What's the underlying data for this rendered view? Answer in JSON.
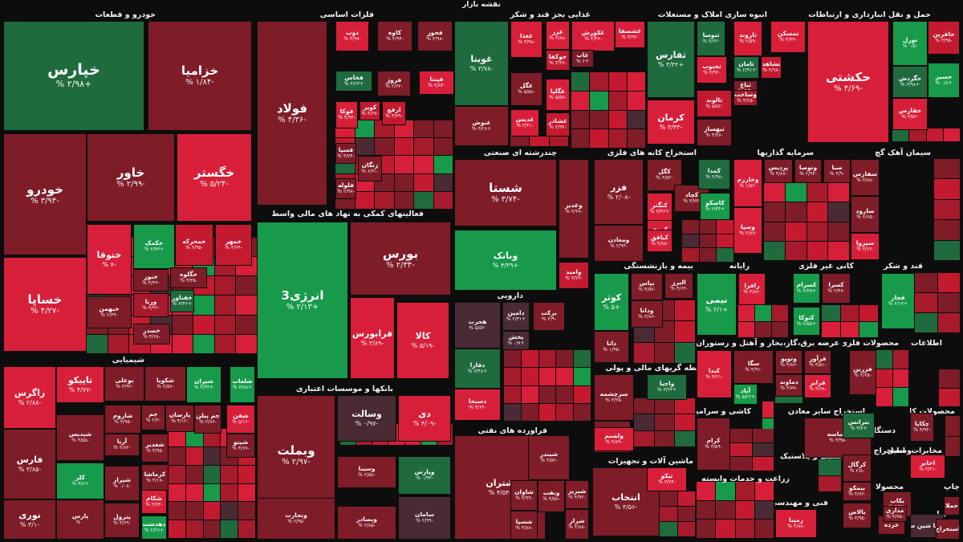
{
  "title": "نقشه بازار",
  "palette": {
    "r4": "#d81f3a",
    "r3": "#c41a30",
    "r2": "#a51b2c",
    "r1": "#7e1c28",
    "g0": "#4a2a33",
    "g1": "#1f6b3d",
    "g2": "#179a4a",
    "g3": "#23b655"
  },
  "sectors": [
    "خودرو و قطعات",
    "فلزات اساسی",
    "غذایی بجز قند و شکر",
    "انبوه سازی املاک و مستغلات",
    "حمل و نقل انبارداری و ارتباطات",
    "چندرشته ای صنعتی",
    "استخراج کانه های فلزی",
    "سرمایه گذاریها",
    "سیمان آهک گچ",
    "فعالیتهای کمکی به نهاد های مالی واسط",
    "شیمیایی",
    "بیمه و بازنشستگی",
    "رایانه",
    "کانی غیر فلزی",
    "قند و شکر",
    "دارویی",
    "بانکها و موسسات اعتباری",
    "واسطه گریهای مالی و پولی",
    "هتل و رستوران",
    "عرضه برق،گاز،بخار و آب",
    "محصولات فلزی",
    "اطلاعات و ارتباطات",
    "فراورده های نفتی",
    "کاشی و سرامیک",
    "استخراج سایر معادن",
    "دستگاههای برقی",
    "محصولات کاغذی",
    "ماشین آلات و تجهیزات",
    "لاستیک و پلاستیک",
    "وسایل",
    "مخابرات",
    "زراعت و خدمات وابسته",
    "فنی و مهندسی",
    "محصولات",
    "چاپ",
    "سایر",
    "استخراج"
  ],
  "tiles": [
    {
      "name": "خپارس",
      "change": "+۲/۹۸ %"
    },
    {
      "name": "خزامیا",
      "change": "-۱/۸۴ %"
    },
    {
      "name": "خاور",
      "change": "-۲/۹۹ %"
    },
    {
      "name": "خگستر",
      "change": "-۵/۲۴ %"
    },
    {
      "name": "خودرو",
      "change": "-۳/۹۴ %"
    },
    {
      "name": "خساپا",
      "change": "-۴/۲۷ %"
    },
    {
      "name": "ختوقا",
      "change": "-۷ %"
    },
    {
      "name": "خکمک",
      "change": "+۲/۹۳ %"
    },
    {
      "name": "خمحرکه",
      "change": "-۳/۹۵ %"
    },
    {
      "name": "خمهر",
      "change": "-۴/۷۹ %"
    },
    {
      "name": "خنور",
      "change": "-۳/۳۳ %"
    },
    {
      "name": "خگلوه",
      "change": "-۳/۳۵ %"
    },
    {
      "name": "خفناور",
      "change": "+۳/۴۶ %"
    },
    {
      "name": "ورنا",
      "change": "-۳/۲۲ %"
    },
    {
      "name": "خبهمن",
      "change": "-۲/۳۹ %"
    },
    {
      "name": "خصدر",
      "change": "-۳/۶۸ %"
    },
    {
      "name": "فولاد",
      "change": "-۴/۳۶ %"
    },
    {
      "name": "ذوب",
      "change": "-۴/۹۷ %"
    },
    {
      "name": "کاوه",
      "change": "-۴/۹۴ %"
    },
    {
      "name": "فخوز",
      "change": "-۴/۹۸ %"
    },
    {
      "name": "فخاس",
      "change": "+۴/۲۳ %"
    },
    {
      "name": "فروژ",
      "change": "-۲/۶۲ %"
    },
    {
      "name": "فپنتا",
      "change": "-۴/۸۴ %"
    },
    {
      "name": "فوکا",
      "change": "-۴/۹۲ %"
    },
    {
      "name": "کویر",
      "change": "-۴/۶۷ %"
    },
    {
      "name": "ارفع",
      "change": "-۴/۷۹ %"
    },
    {
      "name": "فسپا",
      "change": "-۴/۷۴ %"
    },
    {
      "name": "زنگان",
      "change": "-۶/۳۱ %"
    },
    {
      "name": "فلوله",
      "change": "-۲/۹۸ %"
    },
    {
      "name": "غویتا",
      "change": "-۳/۷۸ %"
    },
    {
      "name": "غنوش",
      "change": "+۴/۲۸ %"
    },
    {
      "name": "غغذا",
      "change": "-۴/۹۸ %"
    },
    {
      "name": "غزر",
      "change": "-۳/۸۸ %"
    },
    {
      "name": "غکورش",
      "change": "-۴/۴۷ %"
    },
    {
      "name": "خوکفا",
      "change": "-۴/۴۷ %"
    },
    {
      "name": "غاب",
      "change": "+۶ %"
    },
    {
      "name": "غگل",
      "change": "-۵/۵۸ %"
    },
    {
      "name": "غگلپا",
      "change": "-۵/۵۷ %"
    },
    {
      "name": "غدیس",
      "change": "-۳/۴۱ %"
    },
    {
      "name": "غشاذر",
      "change": "-۳/۹۲ %"
    },
    {
      "name": "غشصفا",
      "change": "-۴/۹۲ %"
    },
    {
      "name": "ثفارس",
      "change": "+۳/۳۲ %"
    },
    {
      "name": "ثنوسا",
      "change": "-۴/۶۲ %"
    },
    {
      "name": "ثاروند",
      "change": "-۲/۵۹ %"
    },
    {
      "name": "ثمسکن",
      "change": "-۳/۹۹ %"
    },
    {
      "name": "ثجنوب",
      "change": "-۳/۹۲ %"
    },
    {
      "name": "ثامان",
      "change": "+۲/۹۱ %"
    },
    {
      "name": "ثشاهد",
      "change": "-۴/۹۸ %"
    },
    {
      "name": "ثباغ",
      "change": "-۴/۹ %"
    },
    {
      "name": "وساخت",
      "change": "-۴/۲۵ %"
    },
    {
      "name": "ثالوند",
      "change": "-۵/۵۲ %"
    },
    {
      "name": "کرمان",
      "change": "-۳/۴۳ %"
    },
    {
      "name": "ثبهساز",
      "change": "-۴/۴۸ %"
    },
    {
      "name": "حکشتی",
      "change": "-۴/۶۹ %"
    },
    {
      "name": "حافرین",
      "change": "-۳/۹۵ %"
    },
    {
      "name": "تورل",
      "change": "-۰/۵ %"
    },
    {
      "name": "حگردش",
      "change": "+۳/۹۸ %"
    },
    {
      "name": "حسیر",
      "change": "+۰/۸ %"
    },
    {
      "name": "حفارس",
      "change": "-۳/۵۲ %"
    },
    {
      "name": "شستا",
      "change": "-۳/۷۴ %"
    },
    {
      "name": "وغدیر",
      "change": "-۴/۳۷ %"
    },
    {
      "name": "وبانک",
      "change": "+۴/۳۹ %"
    },
    {
      "name": "وامید",
      "change": "-۳/۲۳ %"
    },
    {
      "name": "فزر",
      "change": "-۲/۰۸ %"
    },
    {
      "name": "کگل",
      "change": "-۳/۵۲ %"
    },
    {
      "name": "کچاد",
      "change": "-۳/۷۳ %"
    },
    {
      "name": "کنگنر",
      "change": "+۳/۴۶ %"
    },
    {
      "name": "کمدا",
      "change": "-۲/۹۸ %"
    },
    {
      "name": "کاسکو",
      "change": "+۲/۳۴ %"
    },
    {
      "name": "کروی",
      "change": "-۴/۲۸ %"
    },
    {
      "name": "کیافق",
      "change": "-۳/۸۸ %"
    },
    {
      "name": "ومعادن",
      "change": "-۲/۹۳ %"
    },
    {
      "name": "وخارزم",
      "change": "-۱/۵۶ %"
    },
    {
      "name": "وسپا",
      "change": "-۲/۸۷ %"
    },
    {
      "name": "پردیس",
      "change": "-۴/۸۷ %"
    },
    {
      "name": "وتوصا",
      "change": "-۲/۹۳ %"
    },
    {
      "name": "صبا",
      "change": "-۴/۹ %"
    },
    {
      "name": "سفارس",
      "change": "-۳/۸۸ %"
    },
    {
      "name": "سارود",
      "change": "-۳/۶۵ %"
    },
    {
      "name": "سیزوا",
      "change": "-۳/۶۶ %"
    },
    {
      "name": "وبملت",
      "change": "-۲/۹۷ %"
    },
    {
      "name": "وسالت",
      "change": "-۰/۹۷ %"
    },
    {
      "name": "دی",
      "change": "-۴/۰۹ %"
    },
    {
      "name": "وپارس",
      "change": "-۰/۹۳ %"
    },
    {
      "name": "وسینا",
      "change": "-۲/۵۸ %"
    },
    {
      "name": "وتجارت",
      "change": "-۲/۹۵ %"
    },
    {
      "name": "وبصادر",
      "change": "-۲/۸۵ %"
    },
    {
      "name": "سامان",
      "change": "-۲/۹۹ %"
    },
    {
      "name": "بورس",
      "change": "-۲/۳۴ %"
    },
    {
      "name": "انرژی3",
      "change": "+۲/۱۳ %"
    },
    {
      "name": "فرابورس",
      "change": "-۳/۸۹ %"
    },
    {
      "name": "کالا",
      "change": "-۵/۱۹ %"
    },
    {
      "name": "زاگرس",
      "change": "-۲/۸۸ %"
    },
    {
      "name": "تاپیکو",
      "change": "-۴/۷۷ %"
    },
    {
      "name": "بوعلی",
      "change": "-۳/۹۲ %"
    },
    {
      "name": "شکویا",
      "change": "-۴/۵۷ %"
    },
    {
      "name": "شیران",
      "change": "+۴/۳۳ %"
    },
    {
      "name": "شلعاب",
      "change": "+۳/۸۸ %"
    },
    {
      "name": "فارس",
      "change": "-۳/۸۵ %"
    },
    {
      "name": "شیدیس",
      "change": "-۳/۵۵ %"
    },
    {
      "name": "شاروم",
      "change": "-۳/۹۵ %"
    },
    {
      "name": "جم",
      "change": "-۲/۲ %"
    },
    {
      "name": "پارسان",
      "change": "-۴/۱۲ %"
    },
    {
      "name": "جم پیلن",
      "change": "-۲/۸۶ %"
    },
    {
      "name": "شفن",
      "change": "-۵/۱۶ %"
    },
    {
      "name": "کلر",
      "change": "+۳/۸ %"
    },
    {
      "name": "آریا",
      "change": "-۳/۸۲ %"
    },
    {
      "name": "نوری",
      "change": "-۳/۱ %"
    },
    {
      "name": "پارس",
      "change": "۰ %"
    },
    {
      "name": "شیراز",
      "change": "-۰/۰۸ %"
    },
    {
      "name": "پترول",
      "change": "-۴/۶۹ %"
    },
    {
      "name": "کرماشا",
      "change": "-۴/۱۷ %"
    },
    {
      "name": "شکام",
      "change": "-۴/۷۴ %"
    },
    {
      "name": "دهدشت",
      "change": "+۲/۲۷ %"
    },
    {
      "name": "شغدیر",
      "change": "-۴/۹۵ %"
    },
    {
      "name": "شیتو",
      "change": "-۴/۶۷ %"
    },
    {
      "name": "هجرت",
      "change": "-۵/۵۲ %"
    },
    {
      "name": "دامین",
      "change": "+۲/۳۱ %"
    },
    {
      "name": "برکت",
      "change": "-۳/۹ %"
    },
    {
      "name": "پخش",
      "change": "+۰/۷ %"
    },
    {
      "name": "دفارا",
      "change": "+۳/۴۸ %"
    },
    {
      "name": "دسبحا",
      "change": "-۴/۶۲ %"
    },
    {
      "name": "شتران",
      "change": "-۴/۵۴ %"
    },
    {
      "name": "شبندر",
      "change": "-۳/۵۲ %"
    },
    {
      "name": "شپنا",
      "change": "-۲/۶۸ %"
    },
    {
      "name": "شاوان",
      "change": "-۴/۹۹ %"
    },
    {
      "name": "ونفت",
      "change": "-۴/۵۸ %"
    },
    {
      "name": "شبریز",
      "change": "-۴/۹۲ %"
    },
    {
      "name": "شراز",
      "change": "-۴/۸۸ %"
    },
    {
      "name": "شسپا",
      "change": "-۴/۸۸ %"
    },
    {
      "name": "کوثر",
      "change": "+۵ %"
    },
    {
      "name": "بپاس",
      "change": "-۴/۵۷ %"
    },
    {
      "name": "البرز",
      "change": "-۳/۶۳ %"
    },
    {
      "name": "ودانا",
      "change": "-۳/۸۶ %"
    },
    {
      "name": "دانا",
      "change": "-۱/۳۵ %"
    },
    {
      "name": "نیمی",
      "change": "+۲/۱ %"
    },
    {
      "name": "رافزا",
      "change": "-۳/۸۶ %"
    },
    {
      "name": "کسرام",
      "change": "+۴/۳۵ %"
    },
    {
      "name": "کسرا",
      "change": "-۲/۴۷ %"
    },
    {
      "name": "کتوکا",
      "change": "+۲/۵۵ %"
    },
    {
      "name": "قجار",
      "change": "+۲/۱۲ %"
    },
    {
      "name": "سرچشمه",
      "change": "-۳/۲۵ %"
    },
    {
      "name": "وگیر",
      "change": "-۲/۲۶ %"
    },
    {
      "name": "واجیا",
      "change": "+۳/۶۴ %"
    },
    {
      "name": "ولصنم",
      "change": "-۴/۸۹ %"
    },
    {
      "name": "سگا",
      "change": "-۴/۹۱ %"
    },
    {
      "name": "کندا",
      "change": "-۳/۲۱ %"
    },
    {
      "name": "آباد",
      "change": "+۵/۲۶ %"
    },
    {
      "name": "وتوپو",
      "change": "-۴/۸۶ %"
    },
    {
      "name": "دماوند",
      "change": "-۴/۷۷ %"
    },
    {
      "name": "فزرین",
      "change": "-۴/۶۵ %"
    },
    {
      "name": "فرآور",
      "change": "-۳/۵۱ %"
    },
    {
      "name": "فرابر",
      "change": "-۴/۶۸ %"
    },
    {
      "name": "کرام",
      "change": "-۳/۵۹ %"
    },
    {
      "name": "کساسه",
      "change": "-۳/۹۵ %"
    },
    {
      "name": "بترانس",
      "change": "+۳/۷ %"
    },
    {
      "name": "چکاپا",
      "change": "-۴/۹۲ %"
    },
    {
      "name": "انتخاب",
      "change": "-۳/۵۶ %"
    },
    {
      "name": "تیکو",
      "change": "-۳/۲۴ %"
    },
    {
      "name": "کرگال",
      "change": "-۲/۸ %"
    },
    {
      "name": "اخابر",
      "change": "-۳/۲۱ %"
    },
    {
      "name": "بکاب",
      "change": "-۴/۹۳ %"
    },
    {
      "name": "رمپنا",
      "change": "-۴/۸۸ %"
    },
    {
      "name": "بالاس",
      "change": "-۳/۹۵ %"
    },
    {
      "name": "خرده",
      "change": ""
    },
    {
      "name": "مداری",
      "change": "-۴/۷۵ %"
    },
    {
      "name": "بیمکو",
      "change": "-۳/۷۶ %"
    },
    {
      "name": "سا فعا شین سایر",
      "change": ""
    },
    {
      "name": "استخراج",
      "change": ""
    },
    {
      "name": "حملا",
      "change": ""
    }
  ]
}
